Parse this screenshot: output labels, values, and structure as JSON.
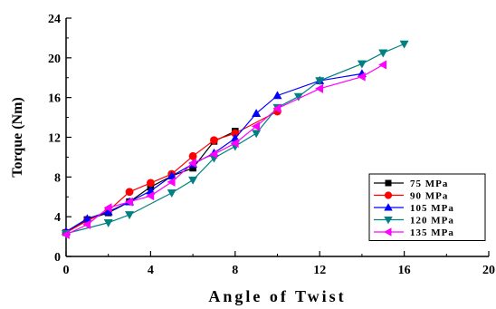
{
  "chart_data": {
    "type": "line",
    "title": "",
    "xlabel": "Angle of Twist",
    "ylabel": "Torque (Nm)",
    "xlim": [
      0,
      20
    ],
    "ylim": [
      0,
      24
    ],
    "xticks": [
      0,
      4,
      8,
      12,
      16,
      20
    ],
    "yticks": [
      0,
      4,
      8,
      12,
      16,
      20,
      24
    ],
    "grid": false,
    "legend_position": "bottom-right",
    "series": [
      {
        "name": "75 MPa",
        "color": "#000000",
        "marker": "square",
        "points": [
          [
            0,
            2.4
          ],
          [
            1,
            3.7
          ],
          [
            2,
            4.4
          ],
          [
            3,
            5.5
          ],
          [
            4,
            7.0
          ],
          [
            5,
            8.1
          ],
          [
            6,
            8.9
          ],
          [
            7,
            11.6
          ],
          [
            8,
            12.6
          ]
        ]
      },
      {
        "name": "90 MPa",
        "color": "#ff0000",
        "marker": "circle",
        "points": [
          [
            0,
            2.4
          ],
          [
            1,
            3.6
          ],
          [
            2,
            4.6
          ],
          [
            3,
            6.5
          ],
          [
            4,
            7.4
          ],
          [
            5,
            8.3
          ],
          [
            6,
            10.1
          ],
          [
            7,
            11.7
          ],
          [
            8,
            12.4
          ],
          [
            10,
            14.6
          ]
        ]
      },
      {
        "name": "105 MPa",
        "color": "#0000ff",
        "marker": "triangle-up",
        "points": [
          [
            0,
            2.5
          ],
          [
            1,
            3.8
          ],
          [
            2,
            4.5
          ],
          [
            3,
            5.5
          ],
          [
            4,
            6.6
          ],
          [
            5,
            8.1
          ],
          [
            6,
            9.3
          ],
          [
            7,
            10.4
          ],
          [
            8,
            11.9
          ],
          [
            9,
            14.4
          ],
          [
            10,
            16.2
          ],
          [
            12,
            17.7
          ],
          [
            14,
            18.4
          ]
        ]
      },
      {
        "name": "120 MPa",
        "color": "#008080",
        "marker": "triangle-down",
        "points": [
          [
            0,
            2.3
          ],
          [
            2,
            3.4
          ],
          [
            3,
            4.2
          ],
          [
            5,
            6.4
          ],
          [
            6,
            7.7
          ],
          [
            7,
            9.9
          ],
          [
            8,
            11.1
          ],
          [
            9,
            12.4
          ],
          [
            10,
            15.0
          ],
          [
            11,
            16.1
          ],
          [
            12,
            17.7
          ],
          [
            14,
            19.4
          ],
          [
            15,
            20.5
          ],
          [
            16,
            21.4
          ]
        ]
      },
      {
        "name": "135 MPa",
        "color": "#ff00ff",
        "marker": "triangle-left",
        "points": [
          [
            0,
            2.2
          ],
          [
            1,
            3.2
          ],
          [
            2,
            4.9
          ],
          [
            3,
            5.5
          ],
          [
            4,
            6.1
          ],
          [
            5,
            7.5
          ],
          [
            6,
            9.4
          ],
          [
            7,
            10.3
          ],
          [
            8,
            11.4
          ],
          [
            9,
            13.1
          ],
          [
            10,
            14.9
          ],
          [
            12,
            16.9
          ],
          [
            14,
            18.1
          ],
          [
            15,
            19.3
          ]
        ]
      }
    ],
    "legend_labels": [
      "75 MPa",
      "90 MPa",
      "105 MPa",
      "120 MPa",
      "135 MPa"
    ]
  }
}
